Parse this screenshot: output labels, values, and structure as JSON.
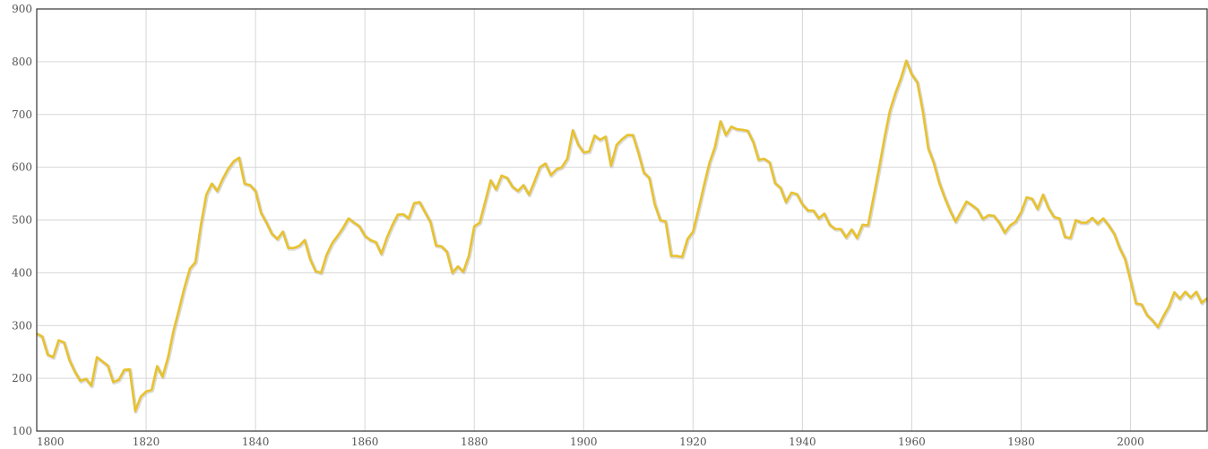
{
  "chart_data": {
    "type": "line",
    "title": "",
    "xlabel": "",
    "ylabel": "",
    "xlim": [
      1800,
      2014
    ],
    "ylim": [
      100,
      900
    ],
    "grid": true,
    "x_ticks": [
      1800,
      1820,
      1840,
      1860,
      1880,
      1900,
      1920,
      1940,
      1960,
      1980,
      2000
    ],
    "y_ticks": [
      100,
      200,
      300,
      400,
      500,
      600,
      700,
      800,
      900
    ],
    "colors": {
      "line": "#e8c22e",
      "line_shadow": "#bdbdbd"
    },
    "series": [
      {
        "x": [
          1800,
          1801,
          1802,
          1803,
          1804,
          1805,
          1806,
          1807,
          1808,
          1809,
          1810,
          1811,
          1812,
          1813,
          1814,
          1815,
          1816,
          1817,
          1818,
          1819,
          1820,
          1821,
          1822,
          1823,
          1824,
          1825,
          1826,
          1827,
          1828,
          1829,
          1830,
          1831,
          1832,
          1833,
          1834,
          1835,
          1836,
          1837,
          1838,
          1839,
          1840,
          1841,
          1842,
          1843,
          1844,
          1845,
          1846,
          1847,
          1848,
          1849,
          1850,
          1851,
          1852,
          1853,
          1854,
          1855,
          1856,
          1857,
          1858,
          1859,
          1860,
          1861,
          1862,
          1863,
          1864,
          1865,
          1866,
          1867,
          1868,
          1869,
          1870,
          1871,
          1872,
          1873,
          1874,
          1875,
          1876,
          1877,
          1878,
          1879,
          1880,
          1881,
          1882,
          1883,
          1884,
          1885,
          1886,
          1887,
          1888,
          1889,
          1890,
          1891,
          1892,
          1893,
          1894,
          1895,
          1896,
          1897,
          1898,
          1899,
          1900,
          1901,
          1902,
          1903,
          1904,
          1905,
          1906,
          1907,
          1908,
          1909,
          1910,
          1911,
          1912,
          1913,
          1914,
          1915,
          1916,
          1917,
          1918,
          1919,
          1920,
          1921,
          1922,
          1923,
          1924,
          1925,
          1926,
          1927,
          1928,
          1929,
          1930,
          1931,
          1932,
          1933,
          1934,
          1935,
          1936,
          1937,
          1938,
          1939,
          1940,
          1941,
          1942,
          1943,
          1944,
          1945,
          1946,
          1947,
          1948,
          1949,
          1950,
          1951,
          1952,
          1953,
          1954,
          1955,
          1956,
          1957,
          1958,
          1959,
          1960,
          1961,
          1962,
          1963,
          1964,
          1965,
          1966,
          1967,
          1968,
          1969,
          1970,
          1971,
          1972,
          1973,
          1974,
          1975,
          1976,
          1977,
          1978,
          1979,
          1980,
          1981,
          1982,
          1983,
          1984,
          1985,
          1986,
          1987,
          1988,
          1989,
          1990,
          1991,
          1992,
          1993,
          1994,
          1995,
          1996,
          1997,
          1998,
          1999,
          2000,
          2001,
          2002,
          2003,
          2004,
          2005,
          2006,
          2007,
          2008,
          2009,
          2010,
          2011,
          2012,
          2013,
          2014
        ],
        "values": [
          285,
          279,
          245,
          240,
          272,
          268,
          234,
          212,
          195,
          199,
          186,
          240,
          232,
          224,
          193,
          197,
          216,
          217,
          138,
          165,
          175,
          178,
          223,
          203,
          240,
          290,
          330,
          372,
          408,
          420,
          490,
          548,
          569,
          555,
          578,
          597,
          611,
          618,
          569,
          566,
          555,
          514,
          495,
          474,
          464,
          478,
          447,
          447,
          451,
          462,
          426,
          403,
          400,
          434,
          456,
          470,
          485,
          503,
          495,
          488,
          470,
          462,
          458,
          436,
          466,
          490,
          510,
          511,
          503,
          532,
          534,
          515,
          496,
          452,
          450,
          440,
          400,
          412,
          402,
          432,
          488,
          495,
          535,
          575,
          558,
          584,
          580,
          563,
          555,
          566,
          548,
          573,
          600,
          607,
          585,
          596,
          600,
          616,
          670,
          643,
          628,
          630,
          660,
          652,
          658,
          603,
          642,
          653,
          661,
          661,
          628,
          590,
          580,
          530,
          500,
          497,
          432,
          432,
          430,
          464,
          478,
          520,
          565,
          608,
          638,
          687,
          661,
          677,
          672,
          671,
          669,
          648,
          614,
          616,
          609,
          570,
          561,
          534,
          552,
          549,
          530,
          518,
          518,
          503,
          512,
          491,
          483,
          483,
          467,
          482,
          466,
          491,
          490,
          543,
          597,
          655,
          707,
          740,
          768,
          802,
          776,
          761,
          707,
          636,
          609,
          571,
          543,
          518,
          497,
          516,
          535,
          528,
          520,
          502,
          509,
          508,
          495,
          476,
          490,
          497,
          515,
          543,
          540,
          521,
          548,
          523,
          506,
          503,
          468,
          466,
          500,
          495,
          495,
          504,
          493,
          503,
          490,
          474,
          447,
          426,
          385,
          342,
          340,
          320,
          310,
          297,
          318,
          336,
          363,
          351,
          364,
          353,
          364,
          343,
          352
        ]
      }
    ]
  }
}
